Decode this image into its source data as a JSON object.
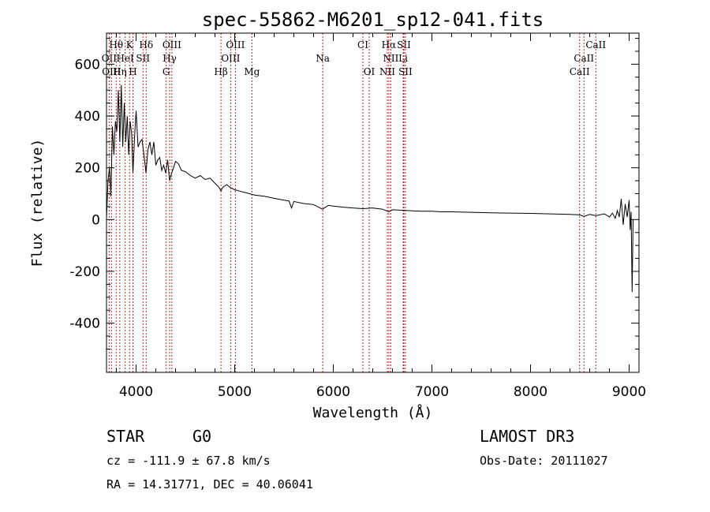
{
  "chart_data": {
    "type": "line",
    "title": "spec-55862-M6201_sp12-041.fits",
    "xlabel": "Wavelength (Å)",
    "ylabel": "Flux (relative)",
    "xlim": [
      3700,
      9100
    ],
    "ylim": [
      -590,
      720
    ],
    "xticks": [
      4000,
      5000,
      6000,
      7000,
      8000,
      9000
    ],
    "yticks": [
      -400,
      -200,
      0,
      200,
      400,
      600
    ],
    "series": [
      {
        "name": "flux",
        "x": [
          3700,
          3715,
          3730,
          3745,
          3760,
          3775,
          3790,
          3805,
          3820,
          3835,
          3850,
          3865,
          3880,
          3895,
          3910,
          3925,
          3940,
          3955,
          3968,
          3985,
          4000,
          4020,
          4040,
          4060,
          4080,
          4101,
          4120,
          4140,
          4160,
          4180,
          4200,
          4220,
          4240,
          4260,
          4280,
          4300,
          4320,
          4340,
          4360,
          4380,
          4400,
          4430,
          4460,
          4500,
          4550,
          4600,
          4650,
          4700,
          4750,
          4800,
          4840,
          4861,
          4880,
          4920,
          4950,
          5000,
          5050,
          5100,
          5150,
          5200,
          5300,
          5400,
          5500,
          5550,
          5577,
          5600,
          5700,
          5800,
          5890,
          5950,
          6000,
          6100,
          6200,
          6300,
          6400,
          6500,
          6563,
          6600,
          6700,
          6800,
          6900,
          7000,
          7100,
          7200,
          7400,
          7600,
          7800,
          8000,
          8200,
          8400,
          8500,
          8542,
          8600,
          8662,
          8700,
          8750,
          8800,
          8830,
          8860,
          8880,
          8900,
          8920,
          8940,
          8960,
          8980,
          9000,
          9010,
          9020,
          9030,
          9040
        ],
        "values": [
          5,
          150,
          200,
          90,
          360,
          250,
          380,
          340,
          500,
          300,
          520,
          280,
          450,
          300,
          400,
          250,
          380,
          330,
          180,
          320,
          420,
          280,
          300,
          310,
          250,
          180,
          270,
          300,
          250,
          300,
          210,
          230,
          240,
          190,
          210,
          180,
          230,
          150,
          180,
          200,
          225,
          215,
          190,
          185,
          170,
          160,
          170,
          155,
          160,
          140,
          125,
          110,
          125,
          135,
          125,
          115,
          110,
          105,
          100,
          95,
          90,
          82,
          75,
          72,
          45,
          70,
          62,
          58,
          40,
          55,
          52,
          48,
          45,
          42,
          45,
          40,
          30,
          38,
          36,
          34,
          32,
          32,
          30,
          30,
          28,
          26,
          25,
          24,
          22,
          20,
          18,
          12,
          20,
          15,
          18,
          22,
          10,
          25,
          5,
          35,
          10,
          80,
          -20,
          60,
          10,
          75,
          -40,
          30,
          -280,
          0
        ]
      }
    ],
    "lines": [
      {
        "label": "Hθ",
        "wl": 3798,
        "row": 0
      },
      {
        "label": "K",
        "wl": 3934,
        "row": 0
      },
      {
        "label": "Hδ",
        "wl": 4102,
        "row": 0
      },
      {
        "label": "OIII",
        "wl": 4363,
        "row": 0
      },
      {
        "label": "OIII",
        "wl": 5007,
        "row": 0
      },
      {
        "label": "CI",
        "wl": 6300,
        "row": 0
      },
      {
        "label": "Hα",
        "wl": 6563,
        "row": 0
      },
      {
        "label": "SII",
        "wl": 6716,
        "row": 0
      },
      {
        "label": "CaII",
        "wl": 8662,
        "row": 0
      },
      {
        "label": "OII",
        "wl": 3727,
        "row": 1
      },
      {
        "label": "HeI",
        "wl": 3889,
        "row": 1
      },
      {
        "label": "SII",
        "wl": 4070,
        "row": 1
      },
      {
        "label": "Hγ",
        "wl": 4340,
        "row": 1
      },
      {
        "label": "OIII",
        "wl": 4959,
        "row": 1
      },
      {
        "label": "Na",
        "wl": 5893,
        "row": 1
      },
      {
        "label": "NII",
        "wl": 6583,
        "row": 1
      },
      {
        "label": "Li",
        "wl": 6708,
        "row": 1
      },
      {
        "label": "CaII",
        "wl": 8542,
        "row": 1
      },
      {
        "label": "OIII",
        "wl": 3750,
        "row": 2
      },
      {
        "label": "Hη",
        "wl": 3835,
        "row": 2
      },
      {
        "label": "H",
        "wl": 3968,
        "row": 2
      },
      {
        "label": "G",
        "wl": 4305,
        "row": 2
      },
      {
        "label": "Hβ",
        "wl": 4861,
        "row": 2
      },
      {
        "label": "Mg",
        "wl": 5175,
        "row": 2
      },
      {
        "label": "OI",
        "wl": 6364,
        "row": 2
      },
      {
        "label": "NII",
        "wl": 6548,
        "row": 2
      },
      {
        "label": "SII",
        "wl": 6731,
        "row": 2
      },
      {
        "label": "CaII",
        "wl": 8498,
        "row": 2
      }
    ]
  },
  "info": {
    "object_class": "STAR",
    "subclass": "G0",
    "survey": "LAMOST DR3",
    "redshift": "cz = -111.9 ± 67.8 km/s",
    "obs_date": "Obs-Date: 20111027",
    "coords": "RA =  14.31771, DEC =  40.06041"
  },
  "colors": {
    "line_marker": "#cc2222",
    "spectrum": "#000000",
    "axes": "#000000"
  }
}
